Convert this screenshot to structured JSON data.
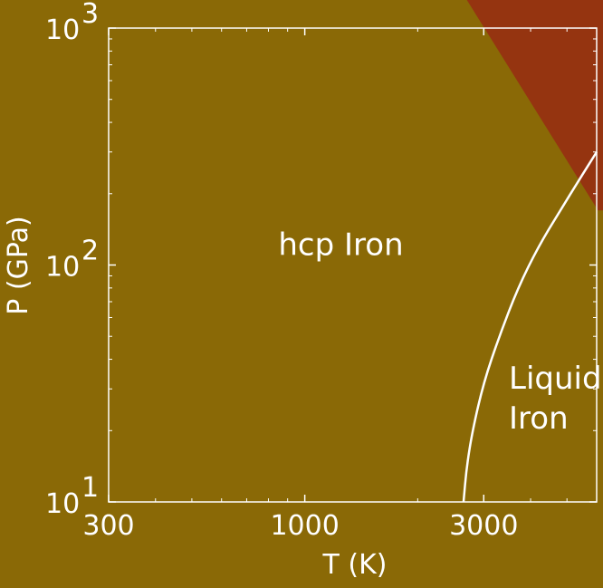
{
  "colors": {
    "background": "#8a6906",
    "high_pressure_region": "#953410",
    "line": "#ffffff",
    "text": "#ffffff"
  },
  "chart_data": {
    "type": "line",
    "title": "",
    "xlabel": "T (K)",
    "ylabel": "P (GPa)",
    "x_scale": "log",
    "y_scale": "log",
    "xlim": [
      300,
      6000
    ],
    "ylim": [
      10,
      1000
    ],
    "xticks": [
      {
        "value": 300,
        "label": "300"
      },
      {
        "value": 1000,
        "label": "1000"
      },
      {
        "value": 3000,
        "label": "3000"
      }
    ],
    "yticks": [
      {
        "value": 10,
        "base": "10",
        "exp": "1"
      },
      {
        "value": 100,
        "base": "10",
        "exp": "2"
      },
      {
        "value": 1000,
        "base": "10",
        "exp": "3"
      }
    ],
    "series": [
      {
        "x": [
          2650,
          2700,
          2800,
          3000,
          3300,
          3700,
          4200,
          4800,
          5400,
          6000
        ],
        "y": [
          10,
          14,
          20,
          32,
          50,
          80,
          120,
          170,
          230,
          300
        ]
      }
    ],
    "regions": [
      {
        "label": "hcp Iron",
        "x": 850,
        "y": 110
      },
      {
        "label_lines": [
          "Liquid",
          "Iron"
        ],
        "x": 3500,
        "y": 30
      }
    ],
    "shaded_region": {
      "boundary": [
        {
          "x": 2700,
          "y": 1320
        },
        {
          "x": 6050,
          "y": 170
        }
      ]
    },
    "grid": false,
    "legend": "none"
  }
}
